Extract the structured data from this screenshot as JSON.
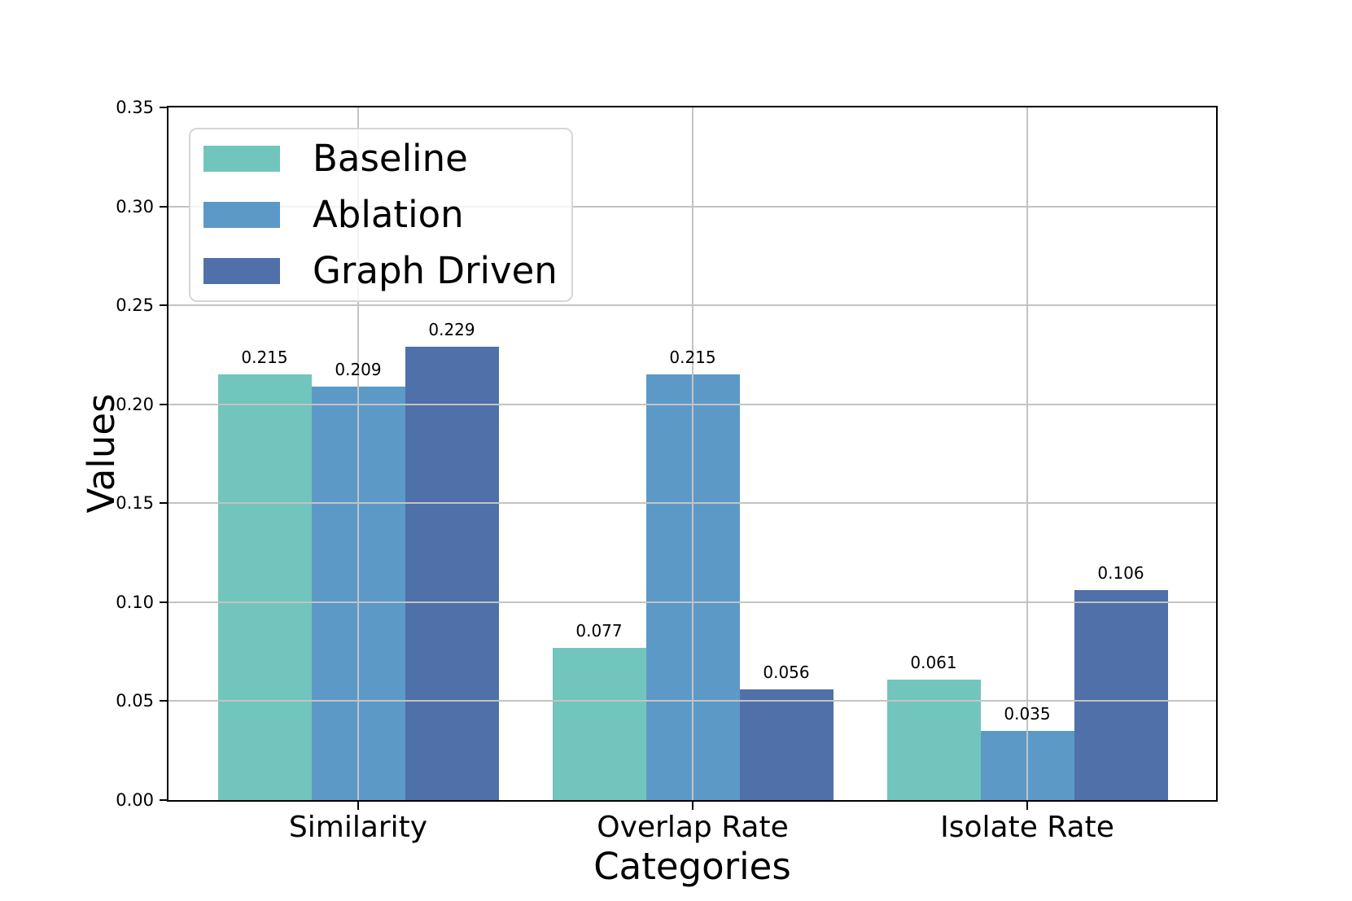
{
  "chart_data": {
    "type": "bar",
    "title": "",
    "xlabel": "Categories",
    "ylabel": "Values",
    "categories": [
      "Similarity",
      "Overlap Rate",
      "Isolate Rate"
    ],
    "series": [
      {
        "name": "Baseline",
        "color": "#72c5bd",
        "values": [
          0.215,
          0.077,
          0.061
        ],
        "bar_labels": [
          "0.215",
          "0.077",
          "0.061"
        ]
      },
      {
        "name": "Ablation",
        "color": "#5c99c7",
        "values": [
          0.209,
          0.215,
          0.035
        ],
        "bar_labels": [
          "0.209",
          "0.215",
          "0.035"
        ]
      },
      {
        "name": "Graph Driven",
        "color": "#4f70a8",
        "values": [
          0.229,
          0.056,
          0.106
        ],
        "bar_labels": [
          "0.229",
          "0.056",
          "0.106"
        ]
      }
    ],
    "ylim": [
      0.0,
      0.35
    ],
    "yticks": [
      "0.00",
      "0.05",
      "0.10",
      "0.15",
      "0.20",
      "0.25",
      "0.30",
      "0.35"
    ],
    "grid": true,
    "grid_on_top": true,
    "legend_position": "upper-left"
  },
  "colors": {
    "background": "#ffffff",
    "grid": "#c3c3c3",
    "spine": "#000000",
    "text": "#000000",
    "legend_border": "#d6d6d6"
  }
}
